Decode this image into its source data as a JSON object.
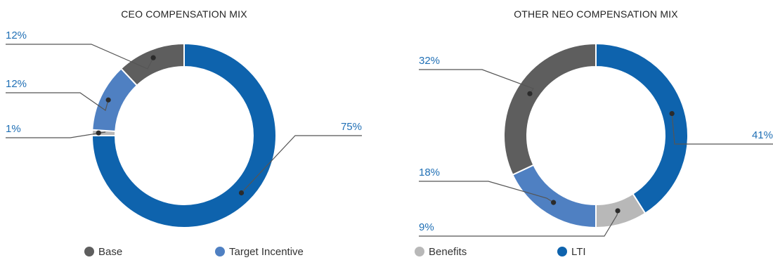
{
  "colors": {
    "Base": "#5e5e5e",
    "Target Incentive": "#4f80c2",
    "Benefits": "#b8b8b8",
    "LTI": "#0e63ad",
    "label": "#1f6fb5",
    "separator": "#ffffff"
  },
  "chart_data": [
    {
      "type": "pie",
      "title": "CEO COMPENSATION MIX",
      "series": [
        {
          "name": "LTI",
          "value": 75,
          "label": "75%"
        },
        {
          "name": "Benefits",
          "value": 1,
          "label": "1%"
        },
        {
          "name": "Target Incentive",
          "value": 12,
          "label": "12%"
        },
        {
          "name": "Base",
          "value": 12,
          "label": "12%"
        }
      ]
    },
    {
      "type": "pie",
      "title": "OTHER NEO COMPENSATION MIX",
      "series": [
        {
          "name": "LTI",
          "value": 41,
          "label": "41%"
        },
        {
          "name": "Benefits",
          "value": 9,
          "label": "9%"
        },
        {
          "name": "Target Incentive",
          "value": 18,
          "label": "18%"
        },
        {
          "name": "Base",
          "value": 32,
          "label": "32%"
        }
      ]
    }
  ],
  "legend": [
    {
      "name": "Base",
      "label": "Base"
    },
    {
      "name": "Target Incentive",
      "label": "Target Incentive"
    },
    {
      "name": "Benefits",
      "label": "Benefits"
    },
    {
      "name": "LTI",
      "label": "LTI"
    }
  ]
}
